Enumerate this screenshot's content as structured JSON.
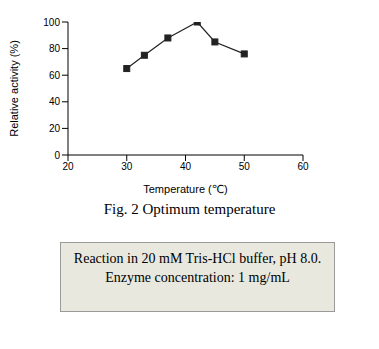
{
  "chart_data": {
    "type": "line",
    "title": "Fig. 2 Optimum temperature",
    "x_label": "Temperature (℃)",
    "y_label": "Relative activity (%)",
    "x": [
      30,
      33,
      37,
      42,
      45,
      50
    ],
    "values": [
      65,
      75,
      88,
      100,
      85,
      76
    ],
    "color": "#222222",
    "marker": "square",
    "line_style": "solid",
    "xlim": [
      20,
      60
    ],
    "xticks": [
      20,
      30,
      40,
      50,
      60
    ],
    "ylim": [
      0,
      100
    ],
    "yticks": [
      0,
      20,
      40,
      60,
      80,
      100
    ],
    "grid": false,
    "annotations": [
      "Reaction in 20 mM Tris-HCl buffer, pH 8.0.",
      "Enzyme concentration: 1 mg/mL"
    ]
  }
}
